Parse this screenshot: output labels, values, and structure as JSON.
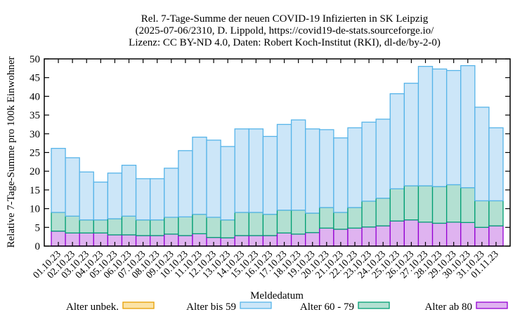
{
  "chart_data": {
    "type": "bar",
    "stacked": true,
    "title_lines": [
      "Rel. 7-Tage-Summe der neuen COVID-19 Infizierten in SK Leipzig",
      "(2025-07-06/2310, D. Lippold, https://covid19-de-stats.sourceforge.io/",
      "Lizenz: CC BY-ND 4.0, Daten: Robert Koch-Institut (RKI), dl-de/by-2-0)"
    ],
    "xlabel": "Meldedatum",
    "ylabel": "Relative 7-Tage-Summe pro 100k Einwohner",
    "ylim": [
      0,
      50
    ],
    "yticks": [
      0,
      5,
      10,
      15,
      20,
      25,
      30,
      35,
      40,
      45,
      50
    ],
    "grid": false,
    "legend_position": "bottom",
    "categories": [
      "01.10.23",
      "02.10.23",
      "03.10.23",
      "04.10.23",
      "05.10.23",
      "06.10.23",
      "07.10.23",
      "08.10.23",
      "09.10.23",
      "10.10.23",
      "11.10.23",
      "12.10.23",
      "13.10.23",
      "14.10.23",
      "15.10.23",
      "16.10.23",
      "17.10.23",
      "18.10.23",
      "19.10.23",
      "20.10.23",
      "21.10.23",
      "22.10.23",
      "23.10.23",
      "24.10.23",
      "25.10.23",
      "26.10.23",
      "27.10.23",
      "28.10.23",
      "29.10.23",
      "30.10.23",
      "31.10.23",
      "01.11.23"
    ],
    "series": [
      {
        "name": "Alter ab 80",
        "fill": "#dfb3f0",
        "stroke": "#9400d3",
        "values": [
          4.0,
          3.5,
          3.5,
          3.5,
          3.0,
          3.0,
          2.8,
          2.8,
          3.2,
          2.8,
          3.3,
          2.3,
          2.2,
          2.8,
          2.8,
          2.8,
          3.5,
          3.2,
          3.6,
          4.8,
          4.5,
          4.8,
          5.1,
          5.4,
          6.7,
          7.0,
          6.4,
          6.1,
          6.4,
          6.3,
          5.0,
          5.4
        ]
      },
      {
        "name": "Alter 60 - 79",
        "fill": "#b3e0d2",
        "stroke": "#009e73",
        "values": [
          5.0,
          4.5,
          3.5,
          3.5,
          4.3,
          5.0,
          4.2,
          4.2,
          4.5,
          5.0,
          5.2,
          5.4,
          4.8,
          6.2,
          6.2,
          5.7,
          6.1,
          6.4,
          5.2,
          5.5,
          4.5,
          5.5,
          6.9,
          7.4,
          8.6,
          9.1,
          9.7,
          9.8,
          10.0,
          9.3,
          7.1,
          6.7
        ]
      },
      {
        "name": "Alter bis 59",
        "fill": "#cce6f8",
        "stroke": "#56b4e9",
        "values": [
          17.1,
          15.6,
          12.8,
          10.1,
          12.2,
          13.6,
          11.0,
          11.0,
          13.1,
          17.7,
          20.6,
          20.6,
          19.6,
          22.3,
          22.3,
          20.8,
          22.9,
          24.1,
          22.5,
          20.8,
          19.9,
          21.3,
          21.1,
          21.1,
          25.4,
          27.4,
          31.9,
          31.4,
          30.5,
          32.6,
          25.0,
          19.5
        ]
      },
      {
        "name": "Alter unbek.",
        "fill": "#fbe3a6",
        "stroke": "#e69f00",
        "values": [
          0,
          0,
          0,
          0,
          0,
          0,
          0,
          0,
          0,
          0,
          0,
          0,
          0,
          0,
          0,
          0,
          0,
          0,
          0,
          0,
          0,
          0,
          0,
          0,
          0,
          0,
          0,
          0,
          0,
          0,
          0,
          0
        ]
      }
    ],
    "legend_order": [
      "Alter unbek.",
      "Alter bis 59",
      "Alter 60 - 79",
      "Alter ab 80"
    ]
  }
}
